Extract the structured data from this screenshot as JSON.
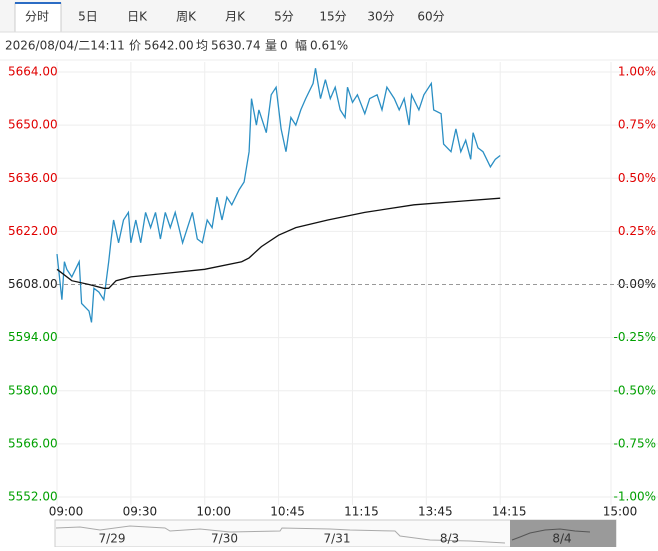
{
  "tabs": [
    "分时",
    "5日",
    "日K",
    "周K",
    "月K",
    "5分",
    "15分",
    "30分",
    "60分"
  ],
  "info": {
    "datetime": "2026/08/04/二14:11",
    "price_label": "价",
    "price": "5642.00",
    "avg_label": "均",
    "avg": "5630.74",
    "volume_label": "量",
    "volume": "0",
    "change_label": "幅",
    "change": "0.61%"
  },
  "navigator": [
    "7/29",
    "7/30",
    "7/31",
    "8/3",
    "8/4"
  ],
  "chart_data": {
    "type": "line",
    "base_price": 5608,
    "xlim": [
      0,
      225
    ],
    "xticks": [
      {
        "value": 0,
        "label": "09:00"
      },
      {
        "value": 30,
        "label": "09:30"
      },
      {
        "value": 60,
        "label": "10:00"
      },
      {
        "value": 90,
        "label": "10:45"
      },
      {
        "value": 120,
        "label": "11:15"
      },
      {
        "value": 150,
        "label": "13:45"
      },
      {
        "value": 180,
        "label": "14:15"
      },
      {
        "value": 225,
        "label": "15:00"
      }
    ],
    "ylim": [
      5552,
      5664
    ],
    "yticks": [
      {
        "value": 5664,
        "label": "5664.00"
      },
      {
        "value": 5650,
        "label": "5650.00"
      },
      {
        "value": 5636,
        "label": "5636.00"
      },
      {
        "value": 5622,
        "label": "5622.00"
      },
      {
        "value": 5608,
        "label": "5608.00"
      },
      {
        "value": 5594,
        "label": "5594.00"
      },
      {
        "value": 5580,
        "label": "5580.00"
      },
      {
        "value": 5566,
        "label": "5566.00"
      },
      {
        "value": 5552,
        "label": "5552.00"
      }
    ],
    "y2lim": [
      -1,
      1
    ],
    "y2ticks": [
      {
        "value": 1,
        "label": "1.00%"
      },
      {
        "value": 0.75,
        "label": "0.75%"
      },
      {
        "value": 0.5,
        "label": "0.50%"
      },
      {
        "value": 0.25,
        "label": "0.25%"
      },
      {
        "value": 0,
        "label": "0.00%"
      },
      {
        "value": -0.25,
        "label": "-0.25%"
      },
      {
        "value": -0.5,
        "label": "-0.50%"
      },
      {
        "value": -0.75,
        "label": "-0.75%"
      },
      {
        "value": -1,
        "label": "-1.00%"
      }
    ],
    "grid": true,
    "up_color": "#e00000",
    "down_color": "#00a000",
    "flat_color": "#222222",
    "series": [
      {
        "color": "#2b8fc4",
        "x": [
          0,
          2,
          3,
          4,
          6,
          9,
          10,
          13,
          14,
          15,
          17,
          19,
          21,
          22,
          23,
          25,
          27,
          29,
          30,
          32,
          34,
          36,
          38,
          40,
          42,
          44,
          46,
          48,
          51,
          53,
          55,
          57,
          59,
          61,
          63,
          65,
          67,
          69,
          71,
          74,
          76,
          78,
          79,
          81,
          82,
          85,
          87,
          89,
          91,
          93,
          95,
          97,
          99,
          101,
          104,
          105,
          107,
          109,
          111,
          113,
          115,
          117,
          118,
          120,
          122,
          125,
          127,
          130,
          132,
          134,
          137,
          139,
          141,
          143,
          144,
          147,
          149,
          152,
          153,
          156,
          157,
          160,
          162,
          164,
          166,
          168,
          169,
          171,
          173,
          176,
          178,
          180
        ],
        "values": [
          5616,
          5604,
          5614,
          5612,
          5610,
          5614,
          5603,
          5601,
          5598,
          5607,
          5606,
          5604,
          5614,
          5620,
          5625,
          5619,
          5625,
          5627,
          5619,
          5625,
          5619,
          5627,
          5623,
          5627,
          5620,
          5627,
          5623,
          5627,
          5619,
          5623,
          5627,
          5620,
          5619,
          5625,
          5623,
          5631,
          5625,
          5631,
          5629,
          5633,
          5635,
          5643,
          5657,
          5650,
          5654,
          5648,
          5658,
          5660,
          5649,
          5643,
          5652,
          5650,
          5654,
          5657,
          5661,
          5665,
          5657,
          5662,
          5657,
          5660,
          5654,
          5652,
          5660,
          5656,
          5658,
          5653,
          5657,
          5658,
          5654,
          5660,
          5657,
          5654,
          5657,
          5650,
          5658,
          5654,
          5658,
          5661,
          5654,
          5653,
          5645,
          5643,
          5649,
          5643,
          5646,
          5641,
          5648,
          5644,
          5643,
          5639,
          5641,
          5642
        ]
      },
      {
        "color": "#111111",
        "x": [
          0,
          6,
          13,
          19,
          21,
          24,
          30,
          45,
          60,
          75,
          78,
          83,
          90,
          97,
          110,
          125,
          145,
          165,
          180
        ],
        "values": [
          5612,
          5609,
          5608,
          5607,
          5607,
          5609,
          5610,
          5611,
          5612,
          5614,
          5615,
          5618,
          5621,
          5623,
          5625,
          5627,
          5629,
          5630,
          5630.74
        ]
      }
    ]
  }
}
